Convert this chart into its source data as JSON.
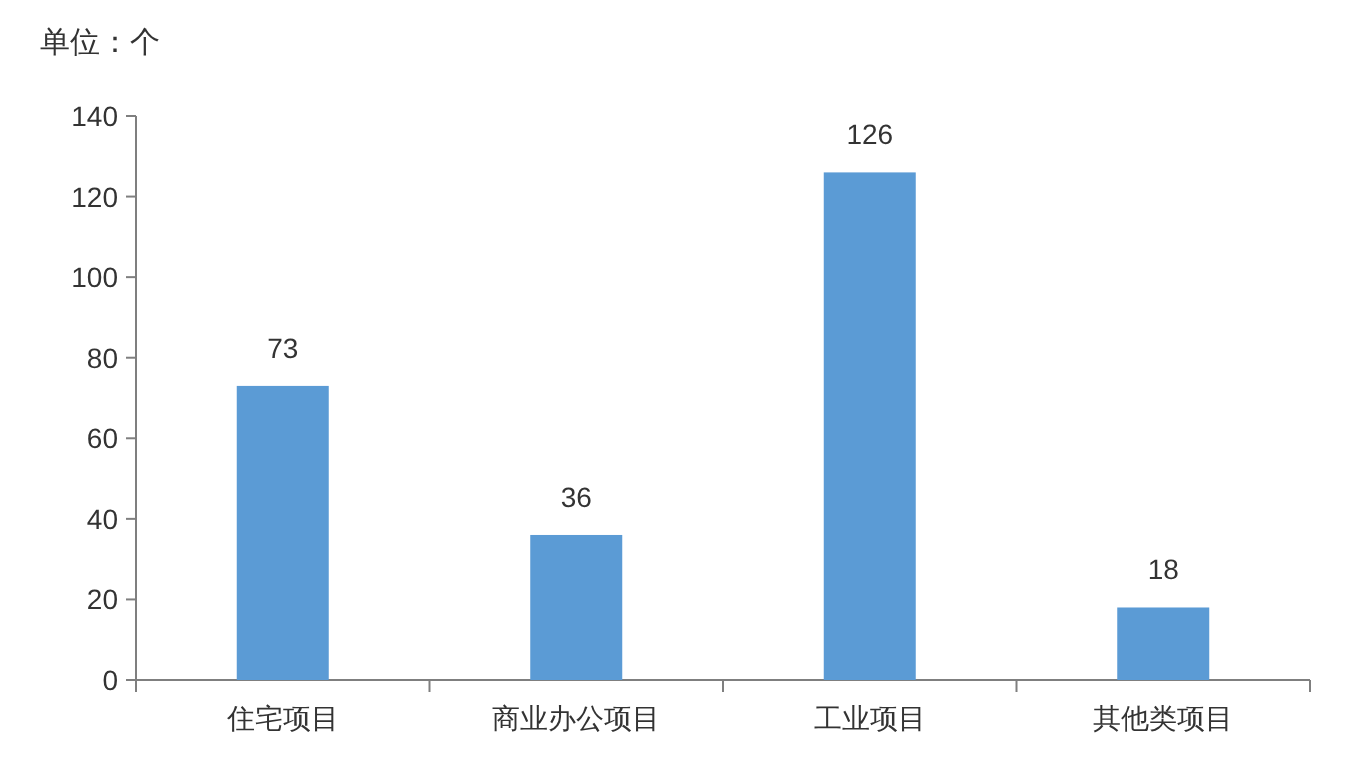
{
  "chart_data": {
    "type": "bar",
    "ylabel": "单位：个",
    "categories": [
      "住宅项目",
      "商业办公项目",
      "工业项目",
      "其他类项目"
    ],
    "values": [
      73,
      36,
      126,
      18
    ],
    "color": "#5b9bd5",
    "ylim": [
      0,
      140
    ],
    "yticks": [
      0,
      20,
      40,
      60,
      80,
      100,
      120,
      140
    ],
    "data_labels": true,
    "grid": false
  }
}
